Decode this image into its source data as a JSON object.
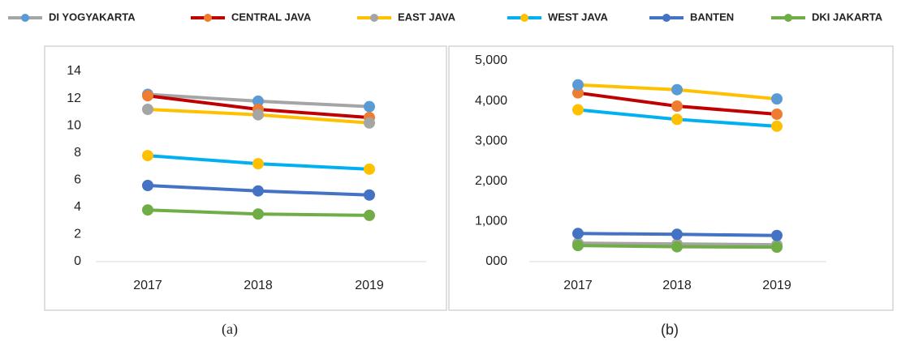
{
  "chart_data": [
    {
      "type": "line",
      "subtitle": "(a)",
      "categories": [
        "2017",
        "2018",
        "2019"
      ],
      "ylim": [
        0,
        14
      ],
      "yticks": [
        0,
        2,
        4,
        6,
        8,
        10,
        12,
        14
      ],
      "series": [
        {
          "name": "DI YOGYAKARTA",
          "color": "#a5a5a5",
          "marker_color": "#5b9bd5",
          "values": [
            12.3,
            11.8,
            11.4
          ]
        },
        {
          "name": "CENTRAL JAVA",
          "color": "#c00000",
          "marker_color": "#ed7d31",
          "values": [
            12.2,
            11.2,
            10.6
          ]
        },
        {
          "name": "EAST JAVA",
          "color": "#ffc000",
          "marker_color": "#a5a5a5",
          "values": [
            11.2,
            10.8,
            10.2
          ]
        },
        {
          "name": "WEST JAVA",
          "color": "#00b0f0",
          "marker_color": "#ffc000",
          "values": [
            7.8,
            7.2,
            6.8
          ]
        },
        {
          "name": "BANTEN",
          "color": "#4472c4",
          "marker_color": "#4472c4",
          "values": [
            5.6,
            5.2,
            4.9
          ]
        },
        {
          "name": "DKI JAKARTA",
          "color": "#70ad47",
          "marker_color": "#70ad47",
          "values": [
            3.8,
            3.5,
            3.4
          ]
        }
      ]
    },
    {
      "type": "line",
      "subtitle": "(b)",
      "categories": [
        "2017",
        "2018",
        "2019"
      ],
      "ylim": [
        0,
        5000
      ],
      "yticks": [
        {
          "value": 0,
          "label": "000"
        },
        {
          "value": 1000,
          "label": "1,000"
        },
        {
          "value": 2000,
          "label": "2,000"
        },
        {
          "value": 3000,
          "label": "3,000"
        },
        {
          "value": 4000,
          "label": "4,000"
        },
        {
          "value": 5000,
          "label": "5,000"
        }
      ],
      "series": [
        {
          "name": "DI YOGYAKARTA",
          "color": "#a5a5a5",
          "marker_color": "#a5a5a5",
          "values": [
            460,
            440,
            420
          ]
        },
        {
          "name": "CENTRAL JAVA",
          "color": "#c00000",
          "marker_color": "#ed7d31",
          "values": [
            4200,
            3870,
            3670
          ]
        },
        {
          "name": "EAST JAVA",
          "color": "#ffc000",
          "marker_color": "#5b9bd5",
          "values": [
            4400,
            4280,
            4050
          ]
        },
        {
          "name": "WEST JAVA",
          "color": "#00b0f0",
          "marker_color": "#ffc000",
          "values": [
            3780,
            3540,
            3370
          ]
        },
        {
          "name": "BANTEN",
          "color": "#4472c4",
          "marker_color": "#4472c4",
          "values": [
            700,
            680,
            650
          ]
        },
        {
          "name": "DKI JAKARTA",
          "color": "#70ad47",
          "marker_color": "#70ad47",
          "values": [
            400,
            370,
            360
          ]
        }
      ]
    }
  ]
}
